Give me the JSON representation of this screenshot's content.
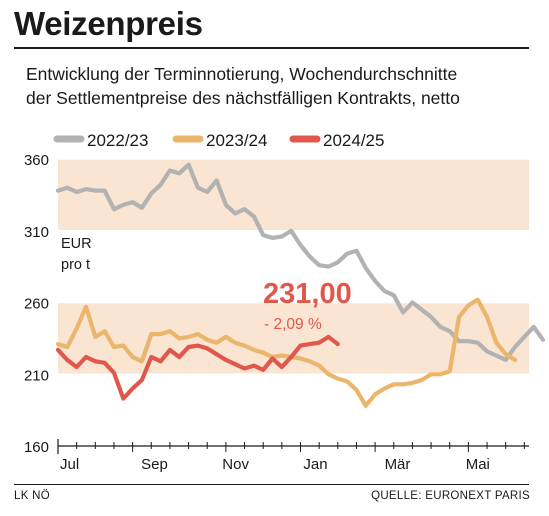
{
  "title": "Weizenpreis",
  "subtitle_line1": "Entwicklung der Terminnotierung, Wochendurchschnitte",
  "subtitle_line2": "der Settlementpreise des nächstfälligen Kontrakts, netto",
  "footer_left": "LK NÖ",
  "footer_right": "QUELLE: EURONEXT PARIS",
  "chart_data": {
    "type": "line",
    "unit_label_line1": "EUR",
    "unit_label_line2": "pro t",
    "ylim": [
      160,
      360
    ],
    "yticks": [
      160,
      210,
      260,
      310,
      360
    ],
    "x_tick_labels": [
      "Jul",
      "Sep",
      "Nov",
      "Jan",
      "Mär",
      "Mai"
    ],
    "x_tick_positions": [
      0,
      8.7,
      17.4,
      26.1,
      34.8,
      43.5
    ],
    "xlim": [
      0,
      50.5
    ],
    "shaded_bands": [
      [
        310,
        360
      ],
      [
        210,
        260
      ]
    ],
    "annotation": {
      "value": "231,00",
      "change": "- 2,09 %"
    },
    "legend_position": "top",
    "series": [
      {
        "name": "2022/23",
        "color": "#b2b2b2",
        "values": [
          338,
          340,
          337,
          339,
          338,
          338,
          325,
          328,
          330,
          326,
          336,
          342,
          352,
          350,
          356,
          340,
          337,
          345,
          328,
          322,
          325,
          320,
          307,
          305,
          306,
          310,
          300,
          292,
          286,
          285,
          288,
          294,
          296,
          284,
          275,
          268,
          265,
          253,
          260,
          255,
          250,
          243,
          240,
          233,
          233,
          232,
          226,
          223,
          220,
          229,
          236,
          243,
          234
        ]
      },
      {
        "name": "2023/24",
        "color": "#ebb56b",
        "values": [
          231,
          229,
          242,
          257,
          236,
          240,
          229,
          230,
          222,
          219,
          238,
          238,
          240,
          235,
          236,
          238,
          234,
          232,
          236,
          232,
          230,
          227,
          225,
          222,
          223,
          222,
          221,
          219,
          216,
          210,
          207,
          205,
          199,
          188,
          196,
          200,
          203,
          203,
          204,
          206,
          210,
          210,
          212,
          250,
          258,
          262,
          250,
          232,
          224,
          220
        ]
      },
      {
        "name": "2024/25",
        "color": "#e0584c",
        "values": [
          227,
          220,
          215,
          222,
          219,
          218,
          211,
          193,
          200,
          206,
          222,
          219,
          227,
          222,
          229,
          230,
          228,
          224,
          220,
          217,
          214,
          216,
          213,
          221,
          215,
          222,
          230,
          231,
          232,
          236,
          231
        ]
      }
    ]
  }
}
